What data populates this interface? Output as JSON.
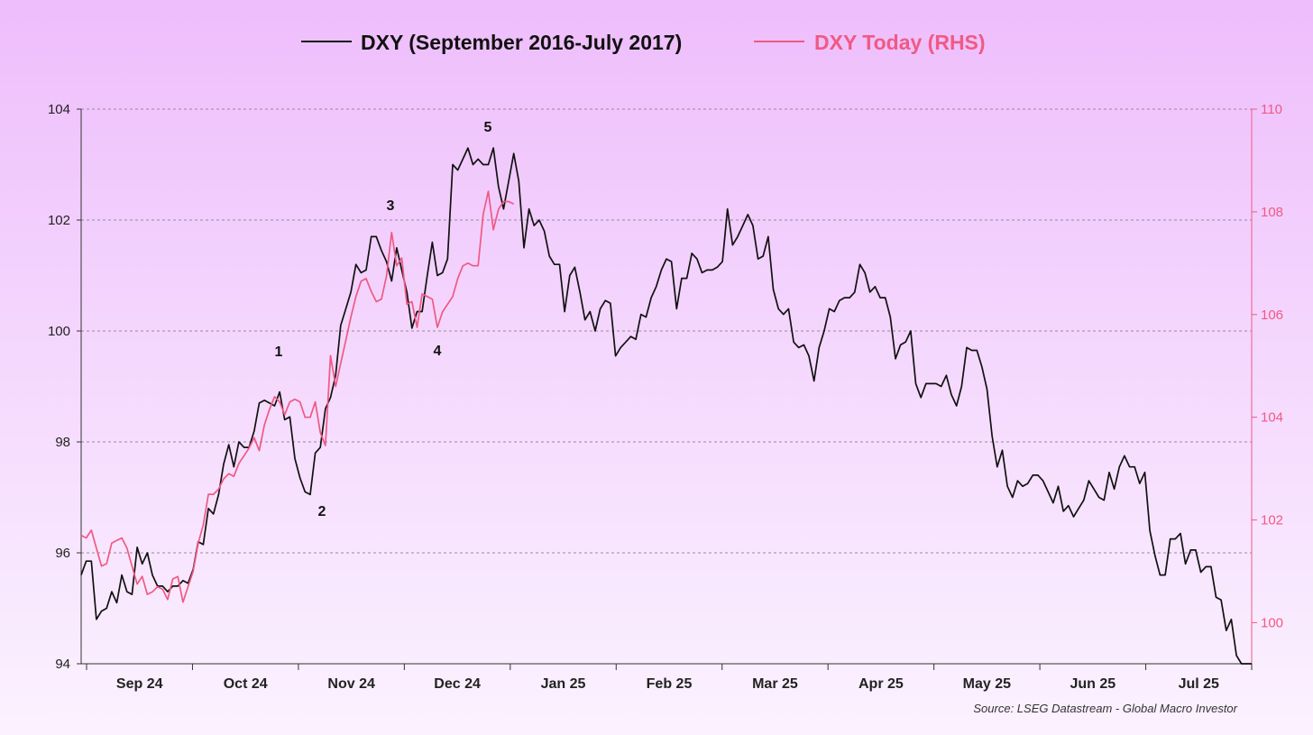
{
  "chart_data": {
    "type": "line",
    "legend_position": "top-center",
    "grid": true,
    "x_ticks": [
      "Sep 24",
      "Oct 24",
      "Nov 24",
      "Dec 24",
      "Jan 25",
      "Feb 25",
      "Mar 25",
      "Apr 25",
      "May 25",
      "Jun 25",
      "Jul 25"
    ],
    "y_left": {
      "range": [
        94,
        104
      ],
      "ticks": [
        94,
        96,
        98,
        100,
        102,
        104
      ]
    },
    "y_right": {
      "range": [
        99.2,
        110
      ],
      "ticks": [
        100,
        102,
        104,
        106,
        108,
        110
      ]
    },
    "source": "Source: LSEG Datastream - Global Macro Investor",
    "wave_labels": [
      "1",
      "2",
      "3",
      "4",
      "5"
    ],
    "series": [
      {
        "name": "DXY (September 2016-July 2017)",
        "axis": "left",
        "color": "#111111",
        "values": [
          95.6,
          95.85,
          95.85,
          94.8,
          94.95,
          95.0,
          95.3,
          95.1,
          95.6,
          95.3,
          95.25,
          96.1,
          95.8,
          96.0,
          95.6,
          95.4,
          95.4,
          95.3,
          95.4,
          95.4,
          95.5,
          95.45,
          95.7,
          96.2,
          96.15,
          96.8,
          96.7,
          97.05,
          97.6,
          97.95,
          97.55,
          98.0,
          97.9,
          97.9,
          98.2,
          98.7,
          98.75,
          98.7,
          98.65,
          98.9,
          98.4,
          98.45,
          97.7,
          97.35,
          97.1,
          97.05,
          97.8,
          97.9,
          98.6,
          98.8,
          99.2,
          100.1,
          100.4,
          100.7,
          101.2,
          101.05,
          101.1,
          101.7,
          101.7,
          101.45,
          101.25,
          100.9,
          101.5,
          101.1,
          100.7,
          100.05,
          100.35,
          100.35,
          101.0,
          101.6,
          101.0,
          101.05,
          101.3,
          103.0,
          102.9,
          103.1,
          103.3,
          103.0,
          103.1,
          103.0,
          103.0,
          103.3,
          102.6,
          102.2,
          102.7,
          103.2,
          102.7,
          101.5,
          102.2,
          101.9,
          102.0,
          101.8,
          101.35,
          101.2,
          101.2,
          100.35,
          101.0,
          101.15,
          100.7,
          100.2,
          100.35,
          100.0,
          100.4,
          100.55,
          100.5,
          99.55,
          99.7,
          99.8,
          99.9,
          99.85,
          100.3,
          100.25,
          100.6,
          100.8,
          101.1,
          101.3,
          101.25,
          100.4,
          100.95,
          100.95,
          101.4,
          101.3,
          101.05,
          101.1,
          101.1,
          101.15,
          101.25,
          102.2,
          101.55,
          101.7,
          101.9,
          102.1,
          101.9,
          101.3,
          101.35,
          101.7,
          100.75,
          100.4,
          100.3,
          100.4,
          99.8,
          99.7,
          99.75,
          99.55,
          99.1,
          99.7,
          100.0,
          100.4,
          100.35,
          100.55,
          100.6,
          100.6,
          100.7,
          101.2,
          101.05,
          100.7,
          100.8,
          100.6,
          100.6,
          100.25,
          99.5,
          99.75,
          99.8,
          100.0,
          99.05,
          98.8,
          99.05,
          99.05,
          99.05,
          99.0,
          99.2,
          98.85,
          98.65,
          99.0,
          99.7,
          99.65,
          99.65,
          99.35,
          98.95,
          98.1,
          97.55,
          97.85,
          97.2,
          97.0,
          97.3,
          97.2,
          97.25,
          97.4,
          97.4,
          97.3,
          97.1,
          96.9,
          97.2,
          96.75,
          96.85,
          96.65,
          96.8,
          96.95,
          97.3,
          97.15,
          97.0,
          96.95,
          97.45,
          97.15,
          97.55,
          97.75,
          97.55,
          97.55,
          97.25,
          97.45,
          96.4,
          95.95,
          95.6,
          95.6,
          96.25,
          96.25,
          96.35,
          95.8,
          96.05,
          96.05,
          95.65,
          95.75,
          95.75,
          95.2,
          95.15,
          94.6,
          94.8,
          94.15,
          93.9,
          94.0,
          94.0
        ]
      },
      {
        "name": "DXY Today (RHS)",
        "axis": "right",
        "color": "#ef5a84",
        "values": [
          101.7,
          101.65,
          101.8,
          101.45,
          101.1,
          101.15,
          101.55,
          101.6,
          101.65,
          101.45,
          101.1,
          100.75,
          100.9,
          100.55,
          100.6,
          100.7,
          100.65,
          100.45,
          100.85,
          100.9,
          100.4,
          100.7,
          101.0,
          101.55,
          101.9,
          102.5,
          102.5,
          102.6,
          102.8,
          102.9,
          102.85,
          103.1,
          103.25,
          103.4,
          103.6,
          103.35,
          103.85,
          104.15,
          104.4,
          104.3,
          104.05,
          104.3,
          104.35,
          104.3,
          104.0,
          104.0,
          104.3,
          103.7,
          103.45,
          105.2,
          104.6,
          105.05,
          105.5,
          105.95,
          106.35,
          106.65,
          106.7,
          106.45,
          106.25,
          106.3,
          106.75,
          107.6,
          106.95,
          107.1,
          106.2,
          106.25,
          105.75,
          106.4,
          106.35,
          106.3,
          105.75,
          106.05,
          106.2,
          106.35,
          106.7,
          106.95,
          107.0,
          106.95,
          106.95,
          107.95,
          108.4,
          107.65,
          108.05,
          108.2,
          108.2,
          108.15
        ]
      }
    ]
  }
}
